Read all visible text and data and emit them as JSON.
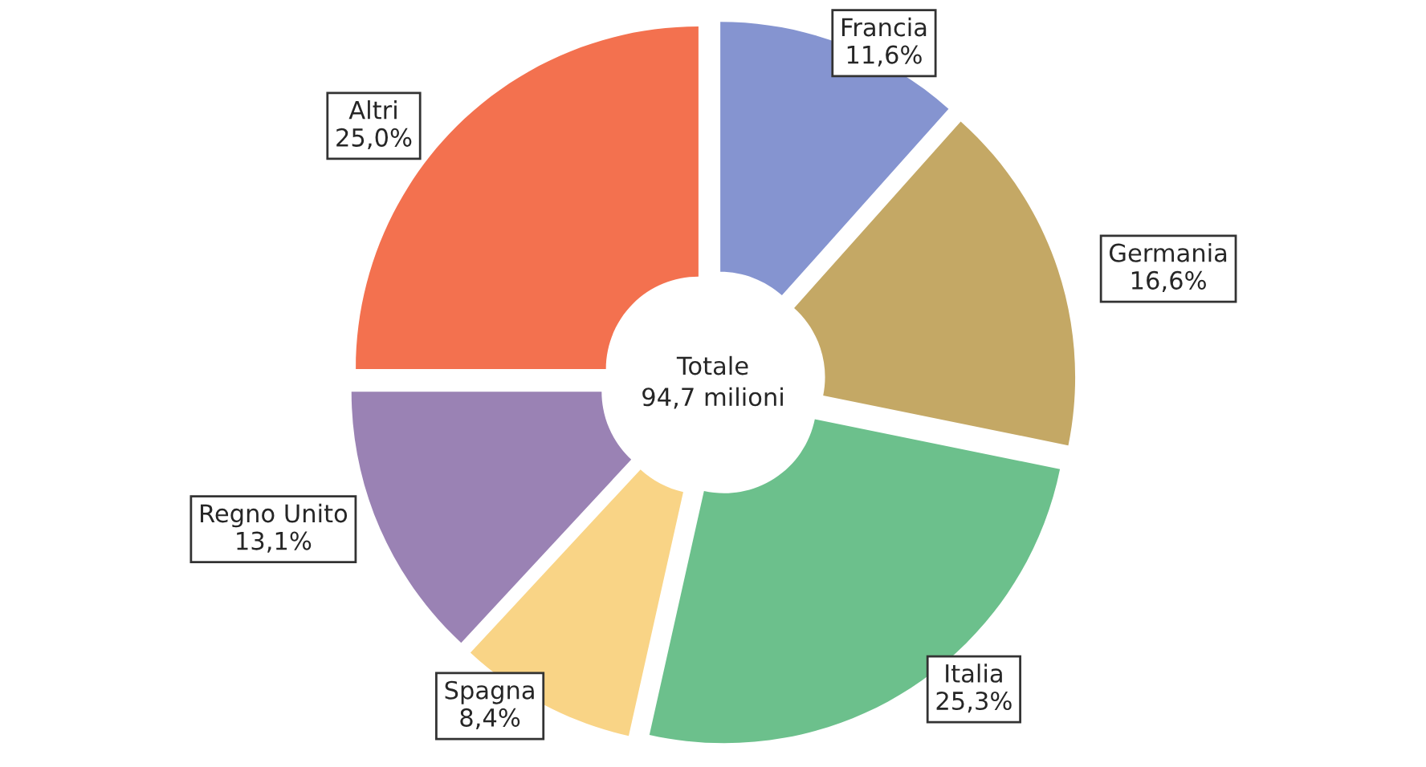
{
  "chart_data": {
    "type": "donut",
    "categories": [
      "Francia",
      "Germania",
      "Italia",
      "Spagna",
      "Regno Unito",
      "Altri"
    ],
    "values": [
      11.6,
      16.6,
      25.3,
      8.4,
      13.1,
      25.0
    ],
    "value_labels": [
      "11,6%",
      "16,6%",
      "25,3%",
      "8,4%",
      "13,1%",
      "25,0%"
    ],
    "colors": [
      "#8594d0",
      "#c4a865",
      "#6cc08c",
      "#f9d486",
      "#9a82b4",
      "#f3714f"
    ],
    "annotations": [
      "Totale\n94,7 milioni"
    ]
  }
}
